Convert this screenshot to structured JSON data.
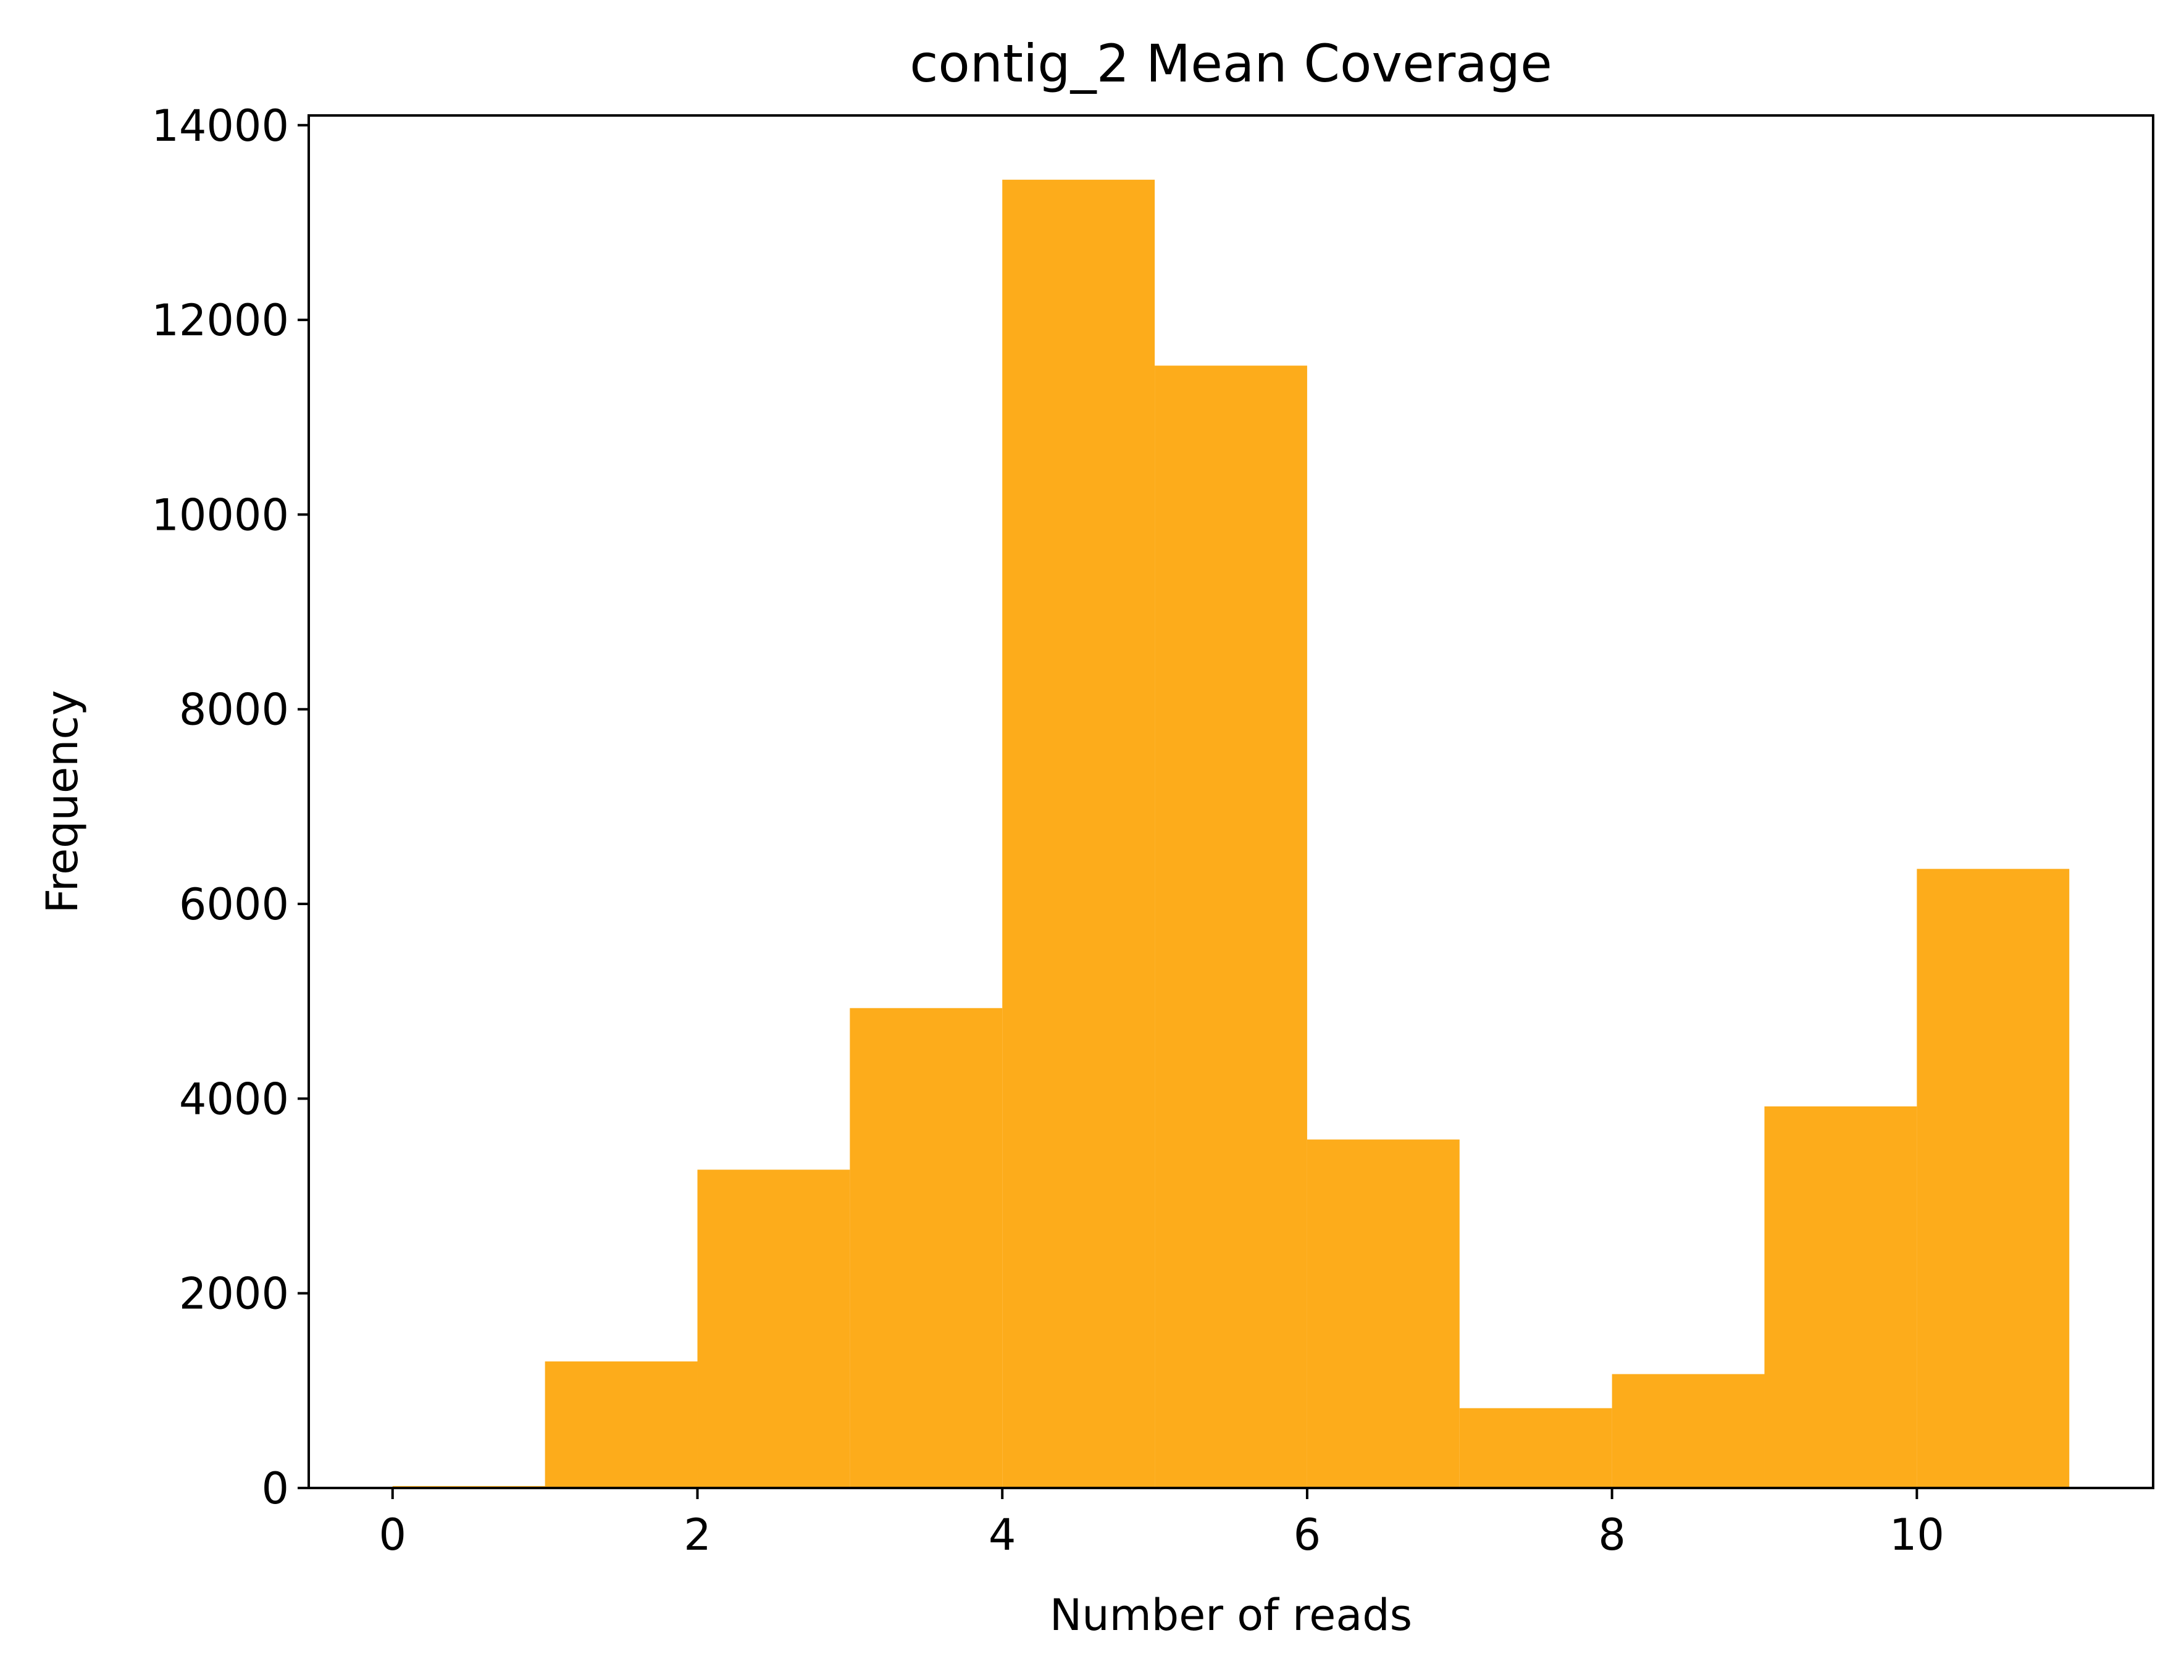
{
  "chart_data": {
    "type": "bar",
    "title": "contig_2 Mean Coverage",
    "xlabel": "Number of reads",
    "ylabel": "Frequency",
    "xlim": [
      -0.55,
      11.55
    ],
    "ylim": [
      0,
      14100
    ],
    "x_ticks": [
      0,
      2,
      4,
      6,
      8,
      10
    ],
    "x_tick_labels": [
      "0",
      "2",
      "4",
      "6",
      "8",
      "10"
    ],
    "y_ticks": [
      0,
      2000,
      4000,
      6000,
      8000,
      10000,
      12000,
      14000
    ],
    "y_tick_labels": [
      "0",
      "2000",
      "4000",
      "6000",
      "8000",
      "10000",
      "12000",
      "14000"
    ],
    "bin_edges": [
      0,
      1,
      2,
      3,
      4,
      5,
      6,
      7,
      8,
      9,
      10,
      11
    ],
    "values": [
      20,
      1300,
      3270,
      4930,
      13440,
      11530,
      3580,
      820,
      1170,
      3920,
      6360
    ],
    "bar_color": "#fdac1b",
    "grid": false,
    "legend": "none"
  }
}
